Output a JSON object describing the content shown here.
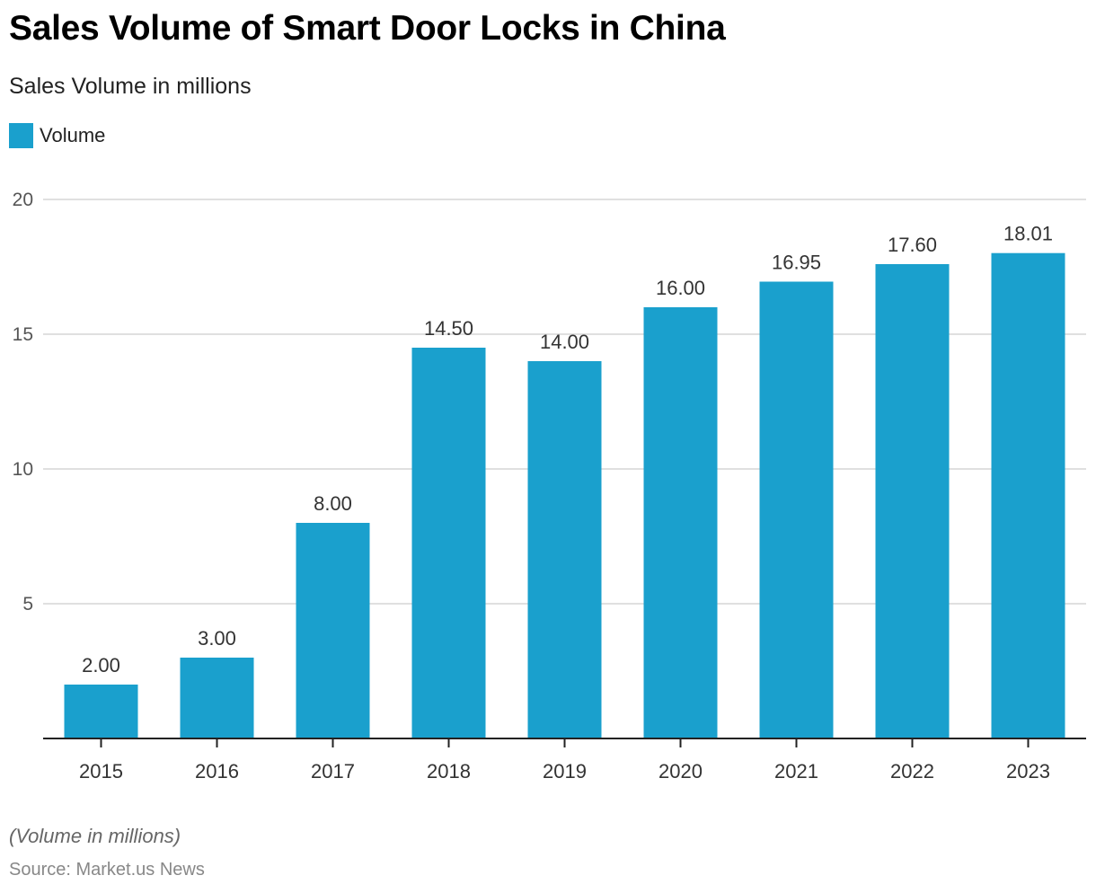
{
  "header": {
    "title": "Sales Volume of Smart Door Locks in China",
    "subtitle": "Sales Volume in millions"
  },
  "legend": [
    {
      "label": "Volume",
      "color": "#1aa0cd"
    }
  ],
  "footer": {
    "note": "(Volume in millions)",
    "source": "Source: Market.us News"
  },
  "chart_data": {
    "type": "bar",
    "title": "Sales Volume of Smart Door Locks in China",
    "subtitle": "Sales Volume in millions",
    "xlabel": "",
    "ylabel": "",
    "categories": [
      "2015",
      "2016",
      "2017",
      "2018",
      "2019",
      "2020",
      "2021",
      "2022",
      "2023"
    ],
    "series": [
      {
        "name": "Volume",
        "color": "#1aa0cd",
        "values": [
          2.0,
          3.0,
          8.0,
          14.5,
          14.0,
          16.0,
          16.95,
          17.6,
          18.01
        ],
        "labels": [
          "2.00",
          "3.00",
          "8.00",
          "14.50",
          "14.00",
          "16.00",
          "16.95",
          "17.60",
          "18.01"
        ]
      }
    ],
    "ylim": [
      0,
      20
    ],
    "yticks": [
      5,
      10,
      15,
      20
    ],
    "grid": true,
    "legend_position": "top-left"
  }
}
